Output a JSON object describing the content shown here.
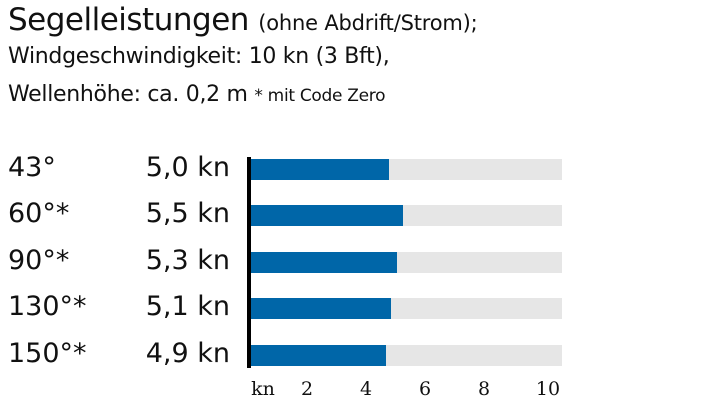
{
  "header": {
    "title": "Segelleistungen",
    "title_sub": "(ohne Abdrift/Strom);",
    "line2": "Windgeschwindigkeit: 10 kn (3 Bft),",
    "line3": "Wellenhöhe: ca. 0,2 m",
    "line3_note": "* mit Code Zero"
  },
  "colors": {
    "bar": "#0066a8",
    "track": "#e6e6e6",
    "axis": "#000000"
  },
  "rows": [
    {
      "angle": "43°",
      "speed": "5,0 kn",
      "value": 5.0
    },
    {
      "angle": "60°*",
      "speed": "5,5 kn",
      "value": 5.5
    },
    {
      "angle": "90°*",
      "speed": "5,3 kn",
      "value": 5.3
    },
    {
      "angle": "130°*",
      "speed": "5,1 kn",
      "value": 5.1
    },
    {
      "angle": "150°*",
      "speed": "4,9 kn",
      "value": 4.9
    }
  ],
  "axis": {
    "unit_label": "kn",
    "ticks": [
      "2",
      "4",
      "6",
      "8",
      "10"
    ]
  },
  "chart_data": {
    "type": "bar",
    "orientation": "horizontal",
    "title": "Segelleistungen (ohne Abdrift/Strom); Windgeschwindigkeit: 10 kn (3 Bft), Wellenhöhe: ca. 0,2 m",
    "annotation": "* mit Code Zero",
    "categories": [
      "43°",
      "60°*",
      "90°*",
      "130°*",
      "150°*"
    ],
    "values": [
      5.0,
      5.5,
      5.3,
      5.1,
      4.9
    ],
    "value_labels": [
      "5,0 kn",
      "5,5 kn",
      "5,3 kn",
      "5,1 kn",
      "4,9 kn"
    ],
    "xlabel": "kn",
    "ylabel": "",
    "xticks": [
      2,
      4,
      6,
      8,
      10
    ],
    "xlim": [
      0,
      10.5
    ],
    "grid": false,
    "legend": null
  }
}
